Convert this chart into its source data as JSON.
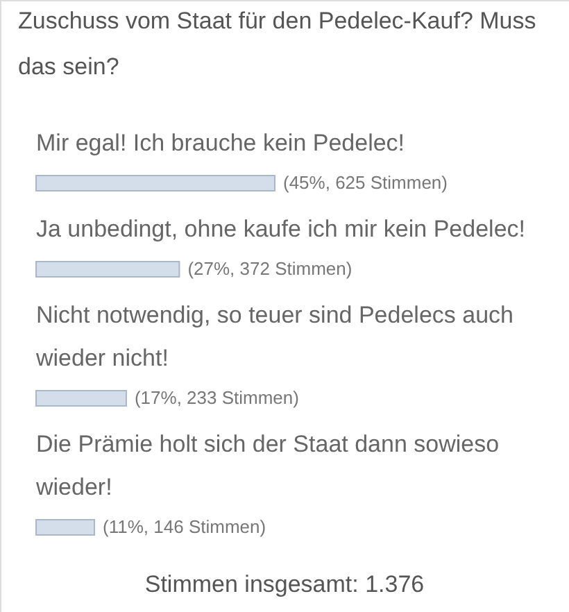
{
  "chart_data": {
    "type": "bar",
    "orientation": "horizontal",
    "title": "Zuschuss vom Staat für den Pedelec-Kauf? Muss das sein?",
    "categories": [
      "Mir egal! Ich brauche kein Pedelec!",
      "Ja unbedingt, ohne kaufe ich mir kein Pedelec!",
      "Nicht notwendig, so teuer sind Pedelecs auch wieder nicht!",
      "Die Prämie holt sich der Staat dann sowieso wieder!"
    ],
    "values": [
      45,
      27,
      17,
      11
    ],
    "value_labels": [
      "(45%, 625 Stimmen)",
      "(27%, 372 Stimmen)",
      "(17%, 233 Stimmen)",
      "(11%, 146 Stimmen)"
    ],
    "color": "#d4deea",
    "tick_labels": "y",
    "annotations": [
      "Stimmen insgesamt: 1.376"
    ]
  }
}
